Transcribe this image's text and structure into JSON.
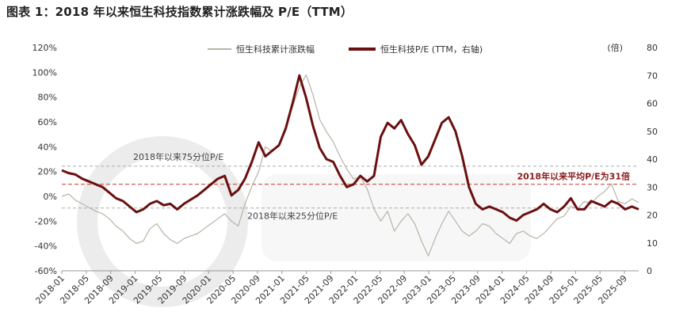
{
  "title": "图表 1：2018 年以来恒生科技指数累计涨跌幅及 P/E（TTM）",
  "chart_data": {
    "type": "line",
    "title": "图表 1：2018 年以来恒生科技指数累计涨跌幅及 P/E（TTM）",
    "x_label_dates": [
      "2018-01",
      "2018-05",
      "2018-09",
      "2019-01",
      "2019-05",
      "2019-09",
      "2020-01",
      "2020-05",
      "2020-09",
      "2021-01",
      "2021-05",
      "2021-09",
      "2022-01",
      "2022-05",
      "2022-09",
      "2023-01",
      "2023-05",
      "2023-09",
      "2024-01",
      "2024-05",
      "2024-09",
      "2025-01",
      "2025-05",
      "2025-09"
    ],
    "y_left": {
      "min": -60,
      "max": 120,
      "step": 20,
      "ticks": [
        "120%",
        "100%",
        "80%",
        "60%",
        "40%",
        "20%",
        "0%",
        "-20%",
        "-40%",
        "-60%"
      ]
    },
    "y_right": {
      "min": 0,
      "max": 80,
      "step": 10,
      "ticks": [
        "80",
        "70",
        "60",
        "50",
        "40",
        "30",
        "20",
        "10",
        "0"
      ],
      "unit_label": "(倍)"
    },
    "series": [
      {
        "name": "恒生科技累计涨跌幅",
        "axis": "left",
        "color": "#b8b3a6",
        "points": [
          [
            0,
            0
          ],
          [
            1,
            2
          ],
          [
            2,
            -3
          ],
          [
            3,
            -6
          ],
          [
            4,
            -9
          ],
          [
            5,
            -12
          ],
          [
            6,
            -14
          ],
          [
            7,
            -18
          ],
          [
            8,
            -24
          ],
          [
            9,
            -28
          ],
          [
            10,
            -34
          ],
          [
            11,
            -38
          ],
          [
            12,
            -36
          ],
          [
            13,
            -26
          ],
          [
            14,
            -22
          ],
          [
            15,
            -30
          ],
          [
            16,
            -35
          ],
          [
            17,
            -38
          ],
          [
            18,
            -34
          ],
          [
            19,
            -32
          ],
          [
            20,
            -30
          ],
          [
            21,
            -26
          ],
          [
            22,
            -22
          ],
          [
            23,
            -18
          ],
          [
            24,
            -14
          ],
          [
            25,
            -20
          ],
          [
            26,
            -24
          ],
          [
            27,
            -6
          ],
          [
            28,
            8
          ],
          [
            29,
            20
          ],
          [
            30,
            40
          ],
          [
            31,
            36
          ],
          [
            32,
            42
          ],
          [
            33,
            55
          ],
          [
            34,
            72
          ],
          [
            35,
            88
          ],
          [
            36,
            98
          ],
          [
            37,
            82
          ],
          [
            38,
            62
          ],
          [
            39,
            52
          ],
          [
            40,
            44
          ],
          [
            41,
            32
          ],
          [
            42,
            22
          ],
          [
            43,
            14
          ],
          [
            44,
            16
          ],
          [
            45,
            6
          ],
          [
            46,
            -10
          ],
          [
            47,
            -20
          ],
          [
            48,
            -12
          ],
          [
            49,
            -28
          ],
          [
            50,
            -20
          ],
          [
            51,
            -14
          ],
          [
            52,
            -22
          ],
          [
            53,
            -36
          ],
          [
            54,
            -48
          ],
          [
            55,
            -34
          ],
          [
            56,
            -22
          ],
          [
            57,
            -12
          ],
          [
            58,
            -20
          ],
          [
            59,
            -28
          ],
          [
            60,
            -32
          ],
          [
            61,
            -28
          ],
          [
            62,
            -22
          ],
          [
            63,
            -24
          ],
          [
            64,
            -30
          ],
          [
            65,
            -34
          ],
          [
            66,
            -38
          ],
          [
            67,
            -30
          ],
          [
            68,
            -28
          ],
          [
            69,
            -32
          ],
          [
            70,
            -34
          ],
          [
            71,
            -30
          ],
          [
            72,
            -24
          ],
          [
            73,
            -18
          ],
          [
            74,
            -16
          ],
          [
            75,
            -8
          ],
          [
            76,
            -10
          ],
          [
            77,
            -4
          ],
          [
            78,
            -6
          ],
          [
            79,
            0
          ],
          [
            80,
            4
          ],
          [
            81,
            10
          ],
          [
            82,
            -4
          ],
          [
            83,
            -6
          ],
          [
            84,
            -2
          ],
          [
            85,
            -5
          ]
        ]
      },
      {
        "name": "恒生科技P/E (TTM，右轴)",
        "axis": "right",
        "color": "#6b0f0f",
        "points": [
          [
            0,
            36
          ],
          [
            1,
            35
          ],
          [
            2,
            34.5
          ],
          [
            3,
            33
          ],
          [
            4,
            32
          ],
          [
            5,
            31
          ],
          [
            6,
            30
          ],
          [
            7,
            28
          ],
          [
            8,
            26
          ],
          [
            9,
            25
          ],
          [
            10,
            23
          ],
          [
            11,
            21
          ],
          [
            12,
            22
          ],
          [
            13,
            24
          ],
          [
            14,
            25
          ],
          [
            15,
            23.5
          ],
          [
            16,
            24
          ],
          [
            17,
            22
          ],
          [
            18,
            24
          ],
          [
            19,
            25.5
          ],
          [
            20,
            27
          ],
          [
            21,
            29
          ],
          [
            22,
            31
          ],
          [
            23,
            33
          ],
          [
            24,
            34
          ],
          [
            25,
            27
          ],
          [
            26,
            29
          ],
          [
            27,
            33
          ],
          [
            28,
            39
          ],
          [
            29,
            46
          ],
          [
            30,
            41
          ],
          [
            31,
            43
          ],
          [
            32,
            45
          ],
          [
            33,
            51
          ],
          [
            34,
            60
          ],
          [
            35,
            70
          ],
          [
            36,
            62
          ],
          [
            37,
            52
          ],
          [
            38,
            44
          ],
          [
            39,
            40
          ],
          [
            40,
            39
          ],
          [
            41,
            34
          ],
          [
            42,
            30
          ],
          [
            43,
            31
          ],
          [
            44,
            34
          ],
          [
            45,
            32
          ],
          [
            46,
            34
          ],
          [
            47,
            48
          ],
          [
            48,
            53
          ],
          [
            49,
            51
          ],
          [
            50,
            54
          ],
          [
            51,
            49
          ],
          [
            52,
            45
          ],
          [
            53,
            38
          ],
          [
            54,
            41
          ],
          [
            55,
            47
          ],
          [
            56,
            53
          ],
          [
            57,
            55
          ],
          [
            58,
            50
          ],
          [
            59,
            41
          ],
          [
            60,
            30
          ],
          [
            61,
            24
          ],
          [
            62,
            22
          ],
          [
            63,
            23
          ],
          [
            64,
            22
          ],
          [
            65,
            21
          ],
          [
            66,
            19
          ],
          [
            67,
            18
          ],
          [
            68,
            20
          ],
          [
            69,
            21
          ],
          [
            70,
            22
          ],
          [
            71,
            24
          ],
          [
            72,
            22
          ],
          [
            73,
            21
          ],
          [
            74,
            23
          ],
          [
            75,
            26
          ],
          [
            76,
            22
          ],
          [
            77,
            22
          ],
          [
            78,
            25
          ],
          [
            79,
            24
          ],
          [
            80,
            23
          ],
          [
            81,
            25
          ],
          [
            82,
            24
          ],
          [
            83,
            22
          ],
          [
            84,
            23
          ],
          [
            85,
            22
          ]
        ]
      }
    ],
    "reference_lines": [
      {
        "label": "2018年以来75分位P/E",
        "value": 37.5,
        "axis": "right",
        "style": "dashed-gray"
      },
      {
        "label": "2018年以来平均P/E为31倍",
        "value": 31,
        "axis": "right",
        "style": "dashed-red"
      },
      {
        "label": "2018年以来25分位P/E",
        "value": 22.5,
        "axis": "right",
        "style": "dashed-gray"
      }
    ],
    "legend": [
      "恒生科技累计涨跌幅",
      "恒生科技P/E (TTM，右轴)"
    ],
    "legend_position": "top"
  }
}
